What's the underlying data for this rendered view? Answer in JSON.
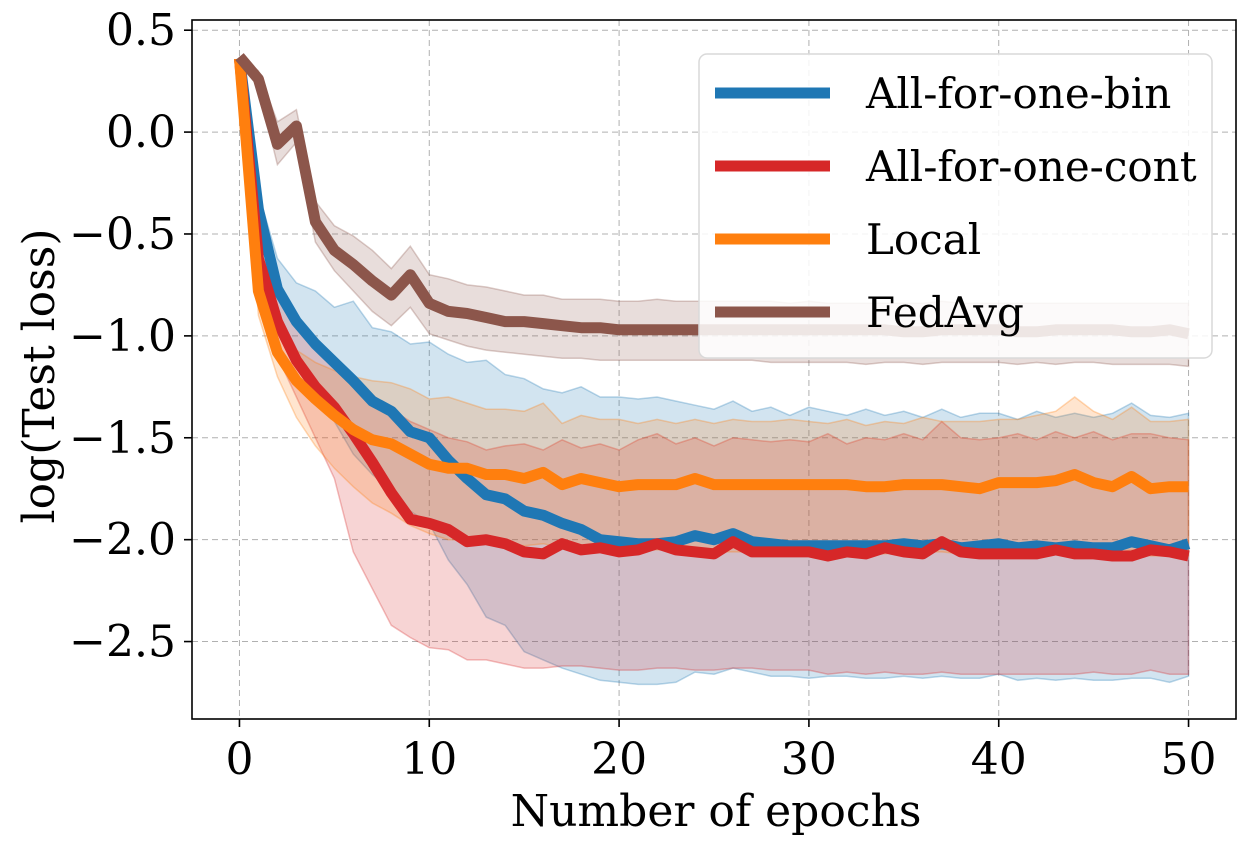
{
  "chart_data": {
    "type": "line",
    "title": "",
    "xlabel": "Number of epochs",
    "ylabel": "log(Test loss)",
    "xlim": [
      -2.5,
      52.5
    ],
    "ylim": [
      -2.88,
      0.55
    ],
    "xticks": [
      0,
      10,
      20,
      30,
      40,
      50
    ],
    "yticks": [
      0.5,
      0.0,
      -0.5,
      -1.0,
      -1.5,
      -2.0,
      -2.5
    ],
    "xtick_labels": [
      "0",
      "10",
      "20",
      "30",
      "40",
      "50"
    ],
    "ytick_labels": [
      "0.5",
      "0.0",
      "−0.5",
      "−1.0",
      "−1.5",
      "−2.0",
      "−2.5"
    ],
    "grid": true,
    "legend_position": "top-right",
    "x": [
      0,
      1,
      2,
      3,
      4,
      5,
      6,
      7,
      8,
      9,
      10,
      11,
      12,
      13,
      14,
      15,
      16,
      17,
      18,
      19,
      20,
      21,
      22,
      23,
      24,
      25,
      26,
      27,
      28,
      29,
      30,
      31,
      32,
      33,
      34,
      35,
      36,
      37,
      38,
      39,
      40,
      41,
      42,
      43,
      44,
      45,
      46,
      47,
      48,
      49,
      50
    ],
    "series": [
      {
        "name": "All-for-one-bin",
        "color": "#1f77b4",
        "values": [
          0.36,
          -0.38,
          -0.77,
          -0.93,
          -1.04,
          -1.13,
          -1.22,
          -1.32,
          -1.37,
          -1.47,
          -1.5,
          -1.61,
          -1.7,
          -1.78,
          -1.8,
          -1.86,
          -1.88,
          -1.92,
          -1.95,
          -2.0,
          -2.01,
          -2.02,
          -2.02,
          -2.01,
          -1.98,
          -2.0,
          -1.97,
          -2.01,
          -2.02,
          -2.03,
          -2.03,
          -2.03,
          -2.03,
          -2.03,
          -2.03,
          -2.02,
          -2.03,
          -2.02,
          -2.04,
          -2.03,
          -2.02,
          -2.04,
          -2.03,
          -2.04,
          -2.03,
          -2.04,
          -2.04,
          -2.01,
          -2.03,
          -2.05,
          -2.02
        ],
        "upper": [
          0.36,
          -0.3,
          -0.62,
          -0.74,
          -0.78,
          -0.86,
          -0.83,
          -0.96,
          -0.98,
          -1.04,
          -1.03,
          -1.09,
          -1.13,
          -1.12,
          -1.19,
          -1.21,
          -1.26,
          -1.28,
          -1.25,
          -1.3,
          -1.3,
          -1.31,
          -1.3,
          -1.32,
          -1.34,
          -1.36,
          -1.32,
          -1.37,
          -1.35,
          -1.39,
          -1.35,
          -1.37,
          -1.39,
          -1.36,
          -1.39,
          -1.37,
          -1.4,
          -1.36,
          -1.4,
          -1.38,
          -1.38,
          -1.41,
          -1.37,
          -1.4,
          -1.38,
          -1.4,
          -1.38,
          -1.33,
          -1.39,
          -1.4,
          -1.38
        ],
        "lower": [
          0.36,
          -0.45,
          -0.9,
          -1.12,
          -1.28,
          -1.42,
          -1.58,
          -1.68,
          -1.76,
          -1.86,
          -1.92,
          -2.1,
          -2.22,
          -2.38,
          -2.42,
          -2.55,
          -2.59,
          -2.63,
          -2.66,
          -2.69,
          -2.7,
          -2.71,
          -2.71,
          -2.7,
          -2.65,
          -2.66,
          -2.63,
          -2.65,
          -2.67,
          -2.67,
          -2.68,
          -2.67,
          -2.67,
          -2.68,
          -2.68,
          -2.67,
          -2.68,
          -2.67,
          -2.68,
          -2.68,
          -2.66,
          -2.69,
          -2.68,
          -2.69,
          -2.68,
          -2.69,
          -2.69,
          -2.68,
          -2.68,
          -2.7,
          -2.67
        ]
      },
      {
        "name": "All-for-one-cont",
        "color": "#d62728",
        "values": [
          0.36,
          -0.62,
          -0.93,
          -1.12,
          -1.25,
          -1.35,
          -1.48,
          -1.62,
          -1.77,
          -1.9,
          -1.92,
          -1.95,
          -2.01,
          -2.0,
          -2.02,
          -2.06,
          -2.07,
          -2.02,
          -2.05,
          -2.04,
          -2.06,
          -2.05,
          -2.02,
          -2.05,
          -2.06,
          -2.07,
          -2.01,
          -2.06,
          -2.06,
          -2.06,
          -2.06,
          -2.08,
          -2.06,
          -2.07,
          -2.04,
          -2.06,
          -2.07,
          -2.01,
          -2.06,
          -2.07,
          -2.07,
          -2.07,
          -2.07,
          -2.05,
          -2.07,
          -2.07,
          -2.08,
          -2.08,
          -2.05,
          -2.06,
          -2.08
        ],
        "upper": [
          0.36,
          -0.52,
          -0.77,
          -0.96,
          -1.05,
          -1.14,
          -1.2,
          -1.29,
          -1.36,
          -1.42,
          -1.46,
          -1.5,
          -1.52,
          -1.56,
          -1.54,
          -1.53,
          -1.56,
          -1.51,
          -1.55,
          -1.53,
          -1.56,
          -1.51,
          -1.48,
          -1.53,
          -1.5,
          -1.54,
          -1.5,
          -1.51,
          -1.52,
          -1.51,
          -1.52,
          -1.48,
          -1.53,
          -1.5,
          -1.51,
          -1.48,
          -1.51,
          -1.42,
          -1.5,
          -1.51,
          -1.5,
          -1.48,
          -1.51,
          -1.47,
          -1.5,
          -1.47,
          -1.51,
          -1.48,
          -1.48,
          -1.5,
          -1.51
        ],
        "lower": [
          0.36,
          -0.7,
          -1.1,
          -1.3,
          -1.5,
          -1.7,
          -2.06,
          -2.24,
          -2.42,
          -2.48,
          -2.53,
          -2.54,
          -2.59,
          -2.59,
          -2.61,
          -2.63,
          -2.63,
          -2.62,
          -2.62,
          -2.63,
          -2.64,
          -2.64,
          -2.63,
          -2.63,
          -2.64,
          -2.64,
          -2.63,
          -2.63,
          -2.64,
          -2.64,
          -2.64,
          -2.66,
          -2.65,
          -2.66,
          -2.65,
          -2.66,
          -2.66,
          -2.65,
          -2.66,
          -2.66,
          -2.66,
          -2.66,
          -2.66,
          -2.66,
          -2.66,
          -2.65,
          -2.66,
          -2.66,
          -2.64,
          -2.66,
          -2.66
        ]
      },
      {
        "name": "Local",
        "color": "#ff7f0e",
        "values": [
          0.36,
          -0.78,
          -1.08,
          -1.22,
          -1.31,
          -1.39,
          -1.46,
          -1.51,
          -1.53,
          -1.58,
          -1.63,
          -1.65,
          -1.65,
          -1.68,
          -1.68,
          -1.7,
          -1.67,
          -1.73,
          -1.7,
          -1.72,
          -1.74,
          -1.73,
          -1.73,
          -1.73,
          -1.7,
          -1.73,
          -1.73,
          -1.73,
          -1.73,
          -1.73,
          -1.73,
          -1.73,
          -1.73,
          -1.74,
          -1.74,
          -1.73,
          -1.73,
          -1.73,
          -1.74,
          -1.75,
          -1.72,
          -1.72,
          -1.72,
          -1.71,
          -1.68,
          -1.72,
          -1.74,
          -1.69,
          -1.75,
          -1.74,
          -1.74
        ],
        "upper": [
          0.36,
          -0.65,
          -0.94,
          -1.07,
          -1.13,
          -1.17,
          -1.2,
          -1.22,
          -1.23,
          -1.26,
          -1.31,
          -1.3,
          -1.33,
          -1.36,
          -1.36,
          -1.37,
          -1.33,
          -1.43,
          -1.39,
          -1.41,
          -1.41,
          -1.43,
          -1.41,
          -1.43,
          -1.41,
          -1.43,
          -1.41,
          -1.42,
          -1.42,
          -1.41,
          -1.42,
          -1.43,
          -1.41,
          -1.44,
          -1.42,
          -1.43,
          -1.4,
          -1.42,
          -1.42,
          -1.42,
          -1.41,
          -1.41,
          -1.39,
          -1.37,
          -1.3,
          -1.37,
          -1.41,
          -1.35,
          -1.42,
          -1.42,
          -1.41
        ],
        "lower": [
          0.36,
          -0.9,
          -1.2,
          -1.4,
          -1.54,
          -1.65,
          -1.74,
          -1.82,
          -1.87,
          -1.93,
          -1.97,
          -2.0,
          -2.0,
          -2.01,
          -2.02,
          -2.03,
          -2.02,
          -2.04,
          -2.03,
          -2.04,
          -2.05,
          -2.05,
          -2.05,
          -2.05,
          -2.04,
          -2.06,
          -2.06,
          -2.06,
          -2.06,
          -2.06,
          -2.06,
          -2.06,
          -2.06,
          -2.07,
          -2.07,
          -2.06,
          -2.06,
          -2.06,
          -2.07,
          -2.07,
          -2.05,
          -2.06,
          -2.06,
          -2.06,
          -2.06,
          -2.06,
          -2.07,
          -2.05,
          -2.08,
          -2.08,
          -2.08
        ]
      },
      {
        "name": "FedAvg",
        "color": "#8c564b",
        "values": [
          0.37,
          0.26,
          -0.06,
          0.03,
          -0.44,
          -0.58,
          -0.65,
          -0.73,
          -0.8,
          -0.7,
          -0.84,
          -0.88,
          -0.89,
          -0.91,
          -0.93,
          -0.93,
          -0.94,
          -0.95,
          -0.96,
          -0.96,
          -0.97,
          -0.97,
          -0.97,
          -0.97,
          -0.97,
          -0.97,
          -0.97,
          -0.97,
          -0.97,
          -0.97,
          -0.97,
          -0.97,
          -0.97,
          -0.97,
          -0.97,
          -0.98,
          -0.98,
          -0.97,
          -0.97,
          -0.97,
          -0.97,
          -0.98,
          -0.98,
          -0.97,
          -0.97,
          -0.97,
          -0.97,
          -0.98,
          -0.98,
          -0.97,
          -0.99
        ],
        "upper": [
          0.37,
          0.3,
          0.05,
          0.11,
          -0.34,
          -0.46,
          -0.51,
          -0.58,
          -0.67,
          -0.56,
          -0.7,
          -0.72,
          -0.75,
          -0.76,
          -0.78,
          -0.8,
          -0.8,
          -0.82,
          -0.82,
          -0.82,
          -0.83,
          -0.83,
          -0.82,
          -0.83,
          -0.83,
          -0.83,
          -0.83,
          -0.83,
          -0.83,
          -0.84,
          -0.83,
          -0.84,
          -0.84,
          -0.84,
          -0.84,
          -0.84,
          -0.84,
          -0.83,
          -0.84,
          -0.84,
          -0.84,
          -0.84,
          -0.84,
          -0.84,
          -0.84,
          -0.84,
          -0.84,
          -0.84,
          -0.84,
          -0.84,
          -0.84
        ],
        "lower": [
          0.37,
          0.22,
          -0.16,
          -0.05,
          -0.54,
          -0.68,
          -0.78,
          -0.88,
          -0.95,
          -0.86,
          -0.99,
          -1.02,
          -1.05,
          -1.07,
          -1.08,
          -1.09,
          -1.1,
          -1.11,
          -1.11,
          -1.12,
          -1.12,
          -1.12,
          -1.12,
          -1.12,
          -1.12,
          -1.12,
          -1.12,
          -1.12,
          -1.13,
          -1.13,
          -1.13,
          -1.13,
          -1.13,
          -1.14,
          -1.13,
          -1.13,
          -1.14,
          -1.13,
          -1.13,
          -1.13,
          -1.13,
          -1.14,
          -1.13,
          -1.14,
          -1.13,
          -1.13,
          -1.14,
          -1.14,
          -1.14,
          -1.14,
          -1.15
        ]
      }
    ]
  }
}
